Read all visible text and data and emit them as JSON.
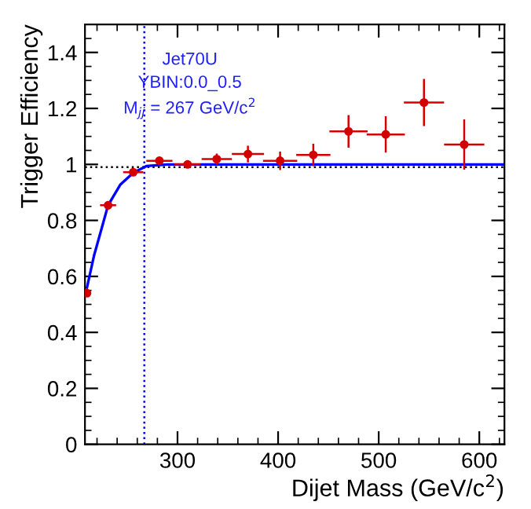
{
  "chart_data": {
    "type": "scatter",
    "xlabel": "Dijet Mass (GeV/c$^{2}$)",
    "ylabel": "Trigger Efficiency",
    "xlim": [
      208,
      625
    ],
    "ylim": [
      0,
      1.5
    ],
    "xticks": [
      300,
      400,
      500,
      600
    ],
    "yticks": [
      0,
      0.2,
      0.4,
      0.6,
      0.8,
      1,
      1.2,
      1.4
    ],
    "marker": "circle",
    "grid": false,
    "legend": false,
    "annotations": [
      "Jet70U",
      "YBIN:0.0_0.5",
      "M$_{jj}$ = 267 GeV/c$^{2}$"
    ],
    "ref_lines": [
      {
        "axis": "y",
        "value": 0.99,
        "color": "#000000",
        "line_style": "dotted"
      },
      {
        "axis": "x",
        "value": 267,
        "color": "#0000ff",
        "line_style": "dotted"
      }
    ],
    "series": [
      {
        "color": "#d40000",
        "x": [
          210,
          231,
          256,
          282,
          310,
          339,
          370,
          402,
          435,
          470,
          507,
          545,
          585
        ],
        "values": [
          0.54,
          0.854,
          0.972,
          1.013,
          1.0,
          1.019,
          1.037,
          1.013,
          1.034,
          1.118,
          1.107,
          1.221,
          1.071
        ],
        "errors": [
          null,
          null,
          null,
          null,
          null,
          0.02,
          0.03,
          0.033,
          0.04,
          0.058,
          0.065,
          0.084,
          0.09
        ],
        "xerrors": [
          null,
          8,
          10,
          13,
          13,
          15,
          16,
          17,
          17,
          19,
          19,
          20,
          20
        ]
      },
      {
        "type": "line",
        "color": "#0000ff",
        "marker": "none",
        "line_style": "solid",
        "x": [
          210,
          217,
          231,
          243,
          256,
          269,
          290,
          625
        ],
        "values": [
          0.56,
          0.674,
          0.854,
          0.927,
          0.97,
          0.994,
          1.0,
          1.0
        ]
      }
    ]
  }
}
